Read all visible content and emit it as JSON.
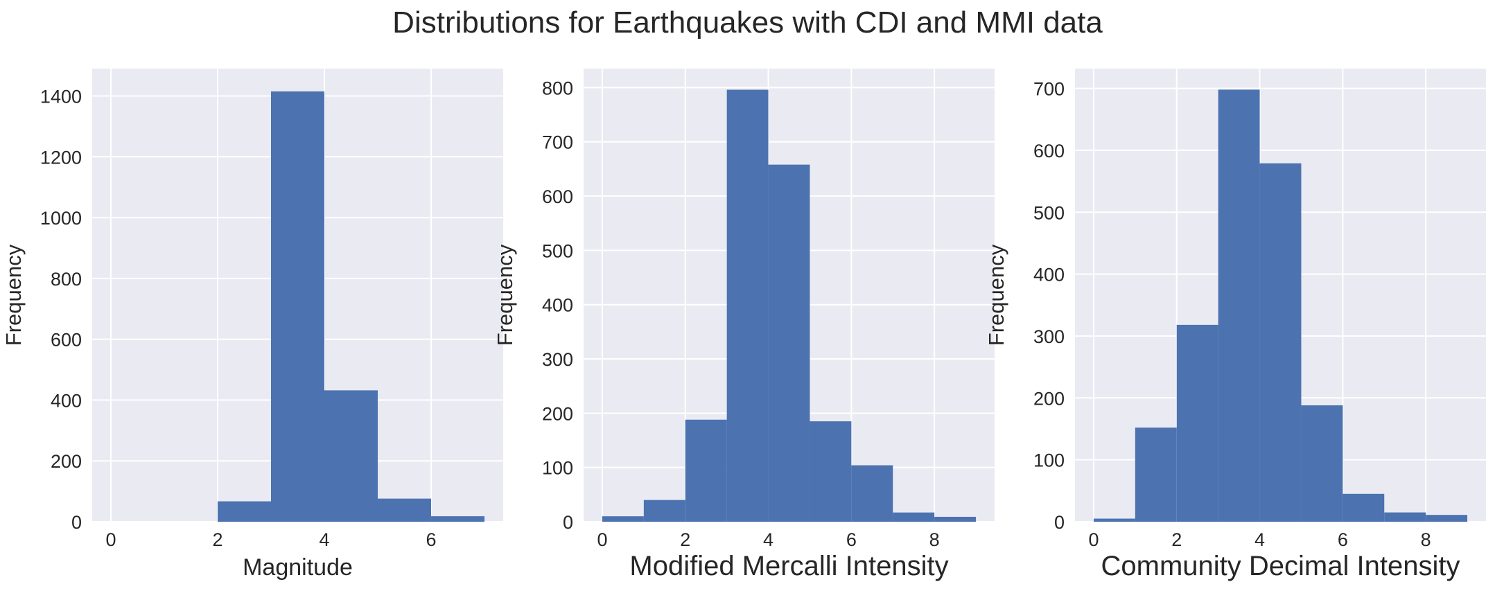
{
  "figure": {
    "title": "Distributions for Earthquakes with CDI and MMI data"
  },
  "colors": {
    "bar": "#4c72b0",
    "axes_bg": "#eaeaf2",
    "grid": "#ffffff",
    "text": "#262626"
  },
  "chart_data": [
    {
      "type": "bar",
      "title": "",
      "xlabel": "Magnitude",
      "ylabel": "Frequency",
      "bins": [
        {
          "x0": 2,
          "x1": 3,
          "value": 67
        },
        {
          "x0": 3,
          "x1": 4,
          "value": 1415
        },
        {
          "x0": 4,
          "x1": 5,
          "value": 432
        },
        {
          "x0": 5,
          "x1": 6,
          "value": 76
        },
        {
          "x0": 6,
          "x1": 7,
          "value": 18
        }
      ],
      "xlim": [
        -0.35,
        7.35
      ],
      "ylim": [
        0,
        1490
      ],
      "xticks": [
        0,
        2,
        4,
        6
      ],
      "yticks": [
        0,
        200,
        400,
        600,
        800,
        1000,
        1200,
        1400
      ],
      "grid": true
    },
    {
      "type": "bar",
      "title": "",
      "xlabel": "Modified Mercalli Intensity",
      "ylabel": "Frequency",
      "bins": [
        {
          "x0": 0,
          "x1": 1,
          "value": 10
        },
        {
          "x0": 1,
          "x1": 2,
          "value": 40
        },
        {
          "x0": 2,
          "x1": 3,
          "value": 188
        },
        {
          "x0": 3,
          "x1": 4,
          "value": 796
        },
        {
          "x0": 4,
          "x1": 5,
          "value": 658
        },
        {
          "x0": 5,
          "x1": 6,
          "value": 185
        },
        {
          "x0": 6,
          "x1": 7,
          "value": 104
        },
        {
          "x0": 7,
          "x1": 8,
          "value": 17
        },
        {
          "x0": 8,
          "x1": 9,
          "value": 9
        }
      ],
      "xlim": [
        -0.45,
        9.45
      ],
      "ylim": [
        0,
        835
      ],
      "xticks": [
        0,
        2,
        4,
        6,
        8
      ],
      "yticks": [
        0,
        100,
        200,
        300,
        400,
        500,
        600,
        700,
        800
      ],
      "grid": true
    },
    {
      "type": "bar",
      "title": "",
      "xlabel": "Community Decimal Intensity",
      "ylabel": "Frequency",
      "bins": [
        {
          "x0": 0,
          "x1": 1,
          "value": 5
        },
        {
          "x0": 1,
          "x1": 2,
          "value": 152
        },
        {
          "x0": 2,
          "x1": 3,
          "value": 318
        },
        {
          "x0": 3,
          "x1": 4,
          "value": 698
        },
        {
          "x0": 4,
          "x1": 5,
          "value": 579
        },
        {
          "x0": 5,
          "x1": 6,
          "value": 188
        },
        {
          "x0": 6,
          "x1": 7,
          "value": 45
        },
        {
          "x0": 7,
          "x1": 8,
          "value": 15
        },
        {
          "x0": 8,
          "x1": 9,
          "value": 11
        }
      ],
      "xlim": [
        -0.45,
        9.45
      ],
      "ylim": [
        0,
        732
      ],
      "xticks": [
        0,
        2,
        4,
        6,
        8
      ],
      "yticks": [
        0,
        100,
        200,
        300,
        400,
        500,
        600,
        700
      ],
      "grid": true
    }
  ]
}
